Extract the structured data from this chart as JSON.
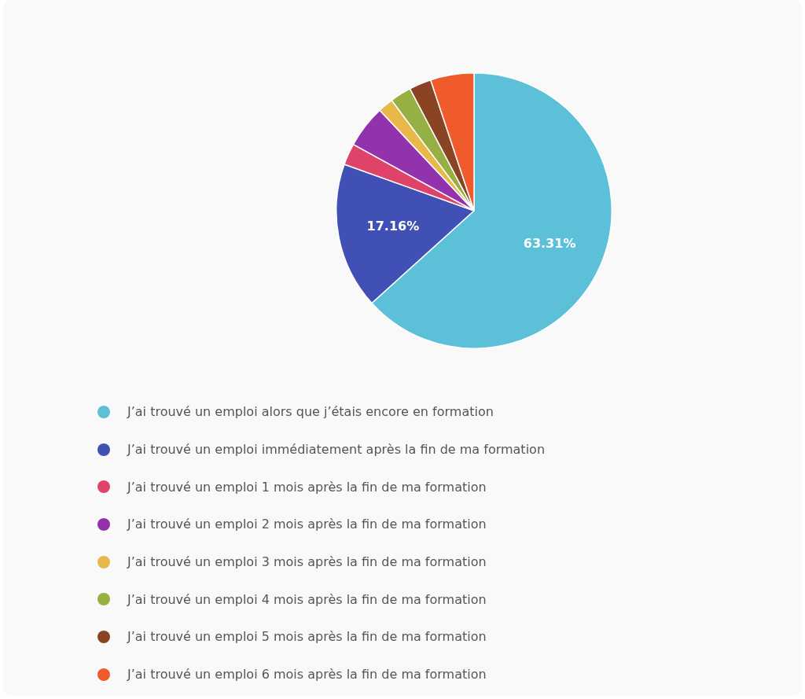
{
  "chart_data": {
    "type": "pie",
    "categories": [
      "J’ai trouvé un emploi alors que j’étais encore en formation",
      "J’ai trouvé un emploi immédiatement après la fin de ma formation",
      "J’ai trouvé un emploi 1 mois après la fin de ma formation",
      "J’ai trouvé un emploi 2 mois après la fin de ma formation",
      "J’ai trouvé un emploi 3 mois après la fin de ma formation",
      "J’ai trouvé un emploi 4 mois après la fin de ma formation",
      "J’ai trouvé un emploi 5 mois après la fin de ma formation",
      "J’ai trouvé un emploi 6 mois après la fin de ma formation"
    ],
    "values": [
      63.31,
      17.16,
      2.53,
      5.0,
      1.8,
      2.5,
      2.6,
      5.1
    ],
    "colors": [
      "#5bc0d8",
      "#4150b5",
      "#e0436a",
      "#9232ad",
      "#e8b84b",
      "#97b043",
      "#8a4424",
      "#ef5b2b"
    ],
    "value_labels": [
      "63.31%",
      "17.16%",
      null,
      null,
      null,
      null,
      null,
      null
    ],
    "legend": "bottom"
  }
}
